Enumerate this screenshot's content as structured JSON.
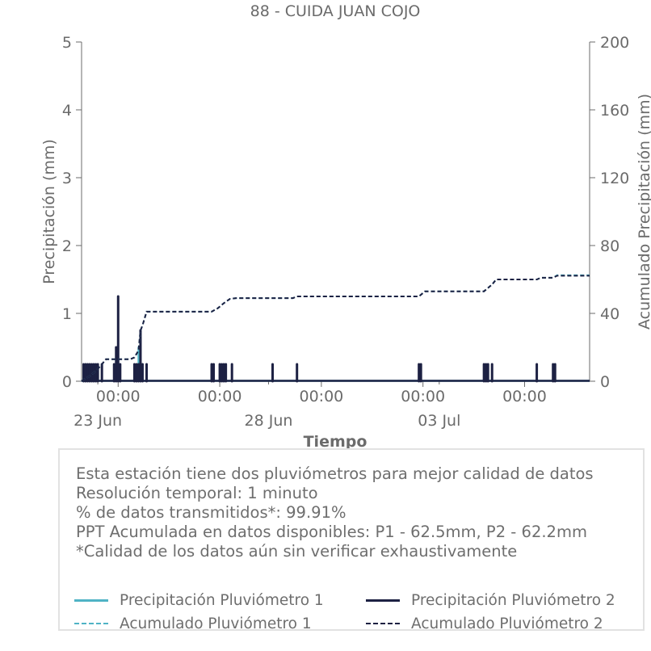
{
  "colors": {
    "p1": "#4fb3c5",
    "p2": "#1d2143",
    "axis": "#6b6b6b"
  },
  "chart_data": {
    "type": "bar",
    "title": "88 - CUIDA JUAN COJO",
    "xlabel": "Tiempo",
    "ylabel": "Precipitación (mm)",
    "y2label": "Acumulado Precipitación (mm)",
    "ylim": [
      0,
      5
    ],
    "y2lim": [
      0,
      200
    ],
    "yticks": [
      "0",
      "1",
      "2",
      "3",
      "4",
      "5"
    ],
    "y2ticks": [
      "0",
      "40",
      "80",
      "120",
      "160",
      "200"
    ],
    "xlim_days": [
      -0.4,
      12.1
    ],
    "xtick_time_days": [
      0.5,
      3,
      5.5,
      8,
      10.5
    ],
    "xtick_time_labels": [
      "00:00",
      "00:00",
      "00:00",
      "00:00",
      "00:00"
    ],
    "xtick_date_days": [
      0,
      4.2,
      8.4
    ],
    "xtick_date_labels": [
      "23 Jun",
      "28 Jun",
      "03 Jul"
    ],
    "grid": false,
    "legend_position": "bottom",
    "series": [
      {
        "name": "Precipitación Pluviómetro 1",
        "style": "bar",
        "points": [
          [
            -0.35,
            0.25
          ],
          [
            -0.3,
            0.25
          ],
          [
            -0.25,
            0.25
          ],
          [
            -0.2,
            0.25
          ],
          [
            -0.15,
            0.25
          ],
          [
            -0.1,
            0.25
          ],
          [
            -0.05,
            0.25
          ],
          [
            0.0,
            0.25
          ],
          [
            0.1,
            0.25
          ],
          [
            0.4,
            0.25
          ],
          [
            0.45,
            0.5
          ],
          [
            0.5,
            1.25
          ],
          [
            0.55,
            0.25
          ],
          [
            0.9,
            0.25
          ],
          [
            0.95,
            0.25
          ],
          [
            1.0,
            0.5
          ],
          [
            1.05,
            0.75
          ],
          [
            1.1,
            0.25
          ],
          [
            1.2,
            0.25
          ],
          [
            2.8,
            0.25
          ],
          [
            2.85,
            0.25
          ],
          [
            3.0,
            0.25
          ],
          [
            3.05,
            0.25
          ],
          [
            3.1,
            0.25
          ],
          [
            3.15,
            0.25
          ],
          [
            3.3,
            0.25
          ],
          [
            4.3,
            0.25
          ],
          [
            4.9,
            0.25
          ],
          [
            7.9,
            0.25
          ],
          [
            7.95,
            0.25
          ],
          [
            9.5,
            0.25
          ],
          [
            9.55,
            0.25
          ],
          [
            9.6,
            0.25
          ],
          [
            9.7,
            0.25
          ],
          [
            10.8,
            0.25
          ],
          [
            11.2,
            0.25
          ],
          [
            11.25,
            0.25
          ]
        ]
      },
      {
        "name": "Precipitación Pluviómetro 2",
        "style": "bar",
        "points": [
          [
            -0.35,
            0.25
          ],
          [
            -0.3,
            0.25
          ],
          [
            -0.25,
            0.25
          ],
          [
            -0.2,
            0.25
          ],
          [
            -0.15,
            0.25
          ],
          [
            -0.1,
            0.25
          ],
          [
            -0.05,
            0.25
          ],
          [
            0.0,
            0.25
          ],
          [
            0.1,
            0.25
          ],
          [
            0.4,
            0.25
          ],
          [
            0.45,
            0.5
          ],
          [
            0.5,
            1.25
          ],
          [
            0.55,
            0.25
          ],
          [
            0.9,
            0.25
          ],
          [
            0.95,
            0.25
          ],
          [
            1.0,
            0.25
          ],
          [
            1.05,
            0.75
          ],
          [
            1.1,
            0.25
          ],
          [
            1.2,
            0.25
          ],
          [
            2.8,
            0.25
          ],
          [
            2.85,
            0.25
          ],
          [
            3.0,
            0.25
          ],
          [
            3.05,
            0.25
          ],
          [
            3.1,
            0.25
          ],
          [
            3.15,
            0.25
          ],
          [
            3.3,
            0.25
          ],
          [
            4.3,
            0.25
          ],
          [
            4.9,
            0.25
          ],
          [
            7.9,
            0.25
          ],
          [
            7.95,
            0.25
          ],
          [
            9.5,
            0.25
          ],
          [
            9.55,
            0.25
          ],
          [
            9.6,
            0.25
          ],
          [
            9.7,
            0.25
          ],
          [
            10.8,
            0.25
          ],
          [
            11.2,
            0.25
          ],
          [
            11.25,
            0.25
          ]
        ]
      },
      {
        "name": "Acumulado Pluviómetro 1",
        "style": "dashed",
        "axis": "y2",
        "points": [
          [
            -0.4,
            0
          ],
          [
            -0.35,
            1
          ],
          [
            -0.2,
            3
          ],
          [
            -0.05,
            6
          ],
          [
            0.1,
            10
          ],
          [
            0.2,
            13
          ],
          [
            0.8,
            13
          ],
          [
            0.9,
            14
          ],
          [
            1.0,
            18
          ],
          [
            1.05,
            30
          ],
          [
            1.1,
            33
          ],
          [
            1.2,
            41
          ],
          [
            2.8,
            41
          ],
          [
            2.95,
            43
          ],
          [
            3.1,
            46
          ],
          [
            3.25,
            48.5
          ],
          [
            3.4,
            49
          ],
          [
            4.8,
            49
          ],
          [
            4.9,
            50
          ],
          [
            7.9,
            50
          ],
          [
            8.05,
            53
          ],
          [
            9.5,
            53
          ],
          [
            9.7,
            57
          ],
          [
            9.8,
            60
          ],
          [
            10.8,
            60
          ],
          [
            10.9,
            61
          ],
          [
            11.2,
            61
          ],
          [
            11.3,
            62.5
          ],
          [
            12.1,
            62.5
          ]
        ]
      },
      {
        "name": "Acumulado Pluviómetro 2",
        "style": "dashed",
        "axis": "y2",
        "points": [
          [
            -0.4,
            0
          ],
          [
            -0.35,
            1
          ],
          [
            -0.2,
            3
          ],
          [
            -0.05,
            6
          ],
          [
            0.1,
            10
          ],
          [
            0.2,
            13
          ],
          [
            0.8,
            13
          ],
          [
            0.9,
            14
          ],
          [
            1.0,
            18
          ],
          [
            1.05,
            30
          ],
          [
            1.1,
            33
          ],
          [
            1.2,
            41
          ],
          [
            2.8,
            41
          ],
          [
            2.95,
            43
          ],
          [
            3.1,
            46
          ],
          [
            3.25,
            48.5
          ],
          [
            3.4,
            49
          ],
          [
            4.8,
            49
          ],
          [
            4.9,
            50
          ],
          [
            7.9,
            50
          ],
          [
            8.05,
            53
          ],
          [
            9.5,
            53
          ],
          [
            9.7,
            57
          ],
          [
            9.8,
            60
          ],
          [
            10.8,
            60
          ],
          [
            10.9,
            61
          ],
          [
            11.2,
            61
          ],
          [
            11.3,
            62.2
          ],
          [
            12.1,
            62.2
          ]
        ]
      }
    ]
  },
  "info": {
    "lines": [
      "Esta estación tiene dos pluviómetros para mejor calidad de datos",
      "Resolución temporal: 1 minuto",
      "% de datos transmitidos*: 99.91%",
      "PPT Acumulada en datos disponibles: P1 - 62.5mm, P2 - 62.2mm",
      "*Calidad de los datos aún sin verificar exhaustivamente"
    ]
  },
  "legend": {
    "p1_line": "Precipitación Pluviómetro 1",
    "p2_line": "Precipitación Pluviómetro 2",
    "p1_acc": "Acumulado Pluviómetro 1",
    "p2_acc": "Acumulado Pluviómetro 2"
  }
}
